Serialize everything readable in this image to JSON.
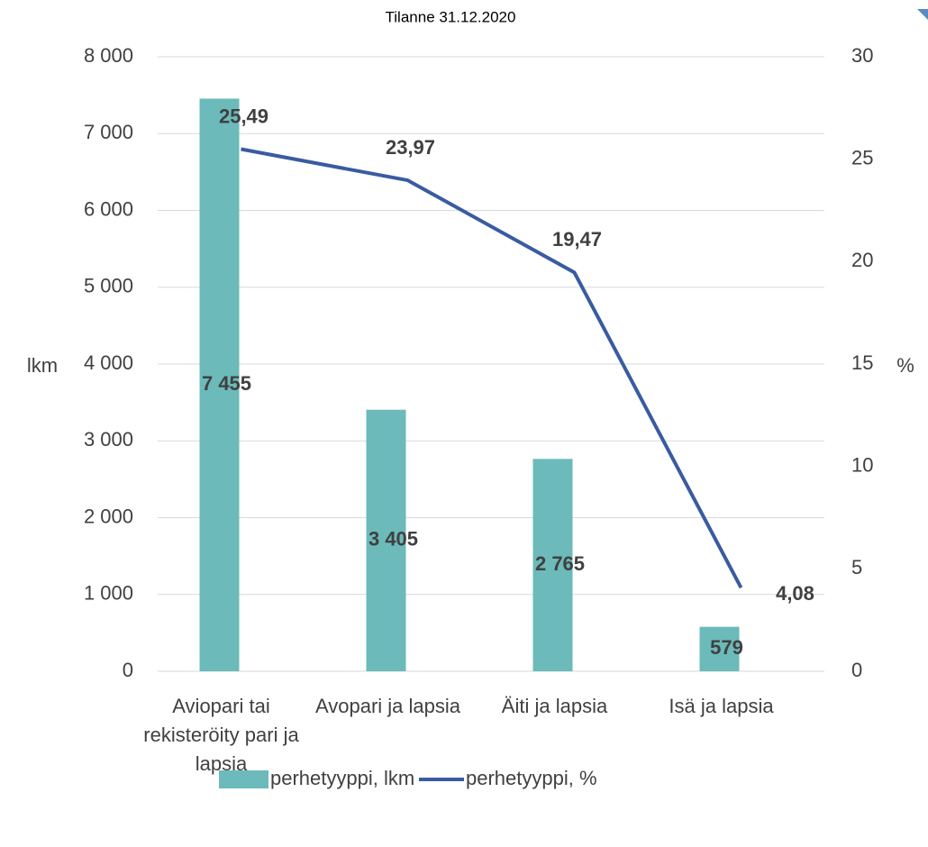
{
  "chart_data": {
    "type": "bar-line",
    "title": "Tilanne 31.12.2020",
    "ylabel": "lkm",
    "y2label": "%",
    "categories": [
      "Aviopari tai rekisteröity pari ja lapsia",
      "Avopari ja lapsia",
      "Äiti ja lapsia",
      "Isä ja lapsia"
    ],
    "series": [
      {
        "name": "perhetyyppi, lkm",
        "type": "bar",
        "color": "#6cbaba",
        "values": [
          7455,
          3405,
          2765,
          579
        ],
        "value_labels": [
          "7 455",
          "3 405",
          "2 765",
          "579"
        ]
      },
      {
        "name": "perhetyyppi, %",
        "type": "line",
        "axis": "y2",
        "color": "#3a5ba0",
        "values": [
          25.49,
          23.97,
          19.47,
          4.08
        ],
        "value_labels": [
          "25,49",
          "23,97",
          "19,47",
          "4,08"
        ]
      }
    ],
    "ylim": [
      0,
      8000
    ],
    "yticks": [
      {
        "value": 0,
        "label": "0"
      },
      {
        "value": 1000,
        "label": "1 000"
      },
      {
        "value": 2000,
        "label": "2 000"
      },
      {
        "value": 3000,
        "label": "3 000"
      },
      {
        "value": 4000,
        "label": "4 000"
      },
      {
        "value": 5000,
        "label": "5 000"
      },
      {
        "value": 6000,
        "label": "6 000"
      },
      {
        "value": 7000,
        "label": "7 000"
      },
      {
        "value": 8000,
        "label": "8 000"
      }
    ],
    "y2lim": [
      0,
      30
    ],
    "y2ticks": [
      0,
      5,
      10,
      15,
      20,
      25,
      30
    ],
    "grid": true,
    "legend": "bottom"
  }
}
